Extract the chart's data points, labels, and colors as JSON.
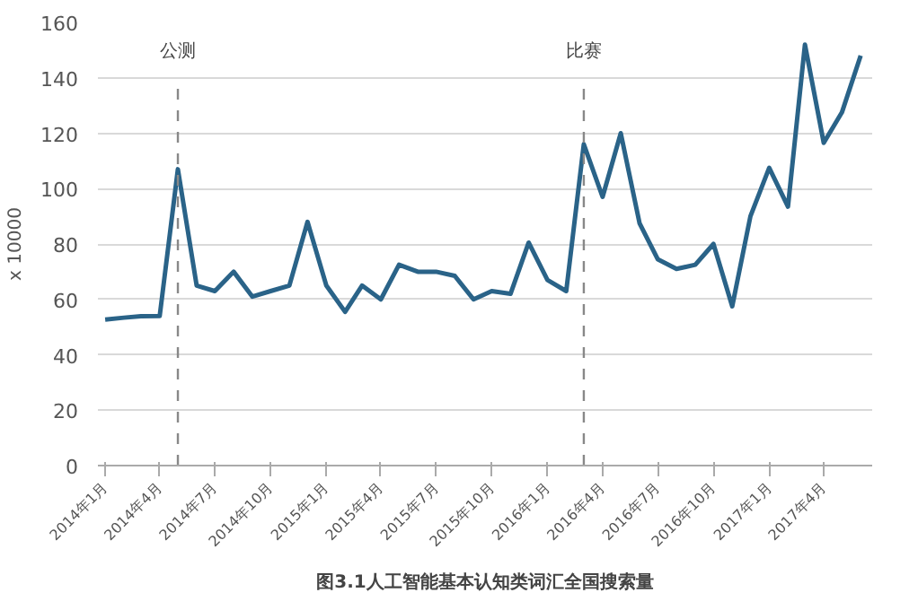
{
  "chart_data": {
    "type": "line",
    "title": "图3.1人工智能基本认知类词汇全国搜索量",
    "ylabel": "x 10000",
    "x": [
      "2014-01",
      "2014-02",
      "2014-03",
      "2014-04",
      "2014-05",
      "2014-06",
      "2014-07",
      "2014-08",
      "2014-09",
      "2014-10",
      "2014-11",
      "2014-12",
      "2015-01",
      "2015-02",
      "2015-03",
      "2015-04",
      "2015-05",
      "2015-06",
      "2015-07",
      "2015-08",
      "2015-09",
      "2015-10",
      "2015-11",
      "2015-12",
      "2016-01",
      "2016-02",
      "2016-03",
      "2016-04",
      "2016-05",
      "2016-06",
      "2016-07",
      "2016-08",
      "2016-09",
      "2016-10",
      "2016-11",
      "2016-12",
      "2017-01",
      "2017-02",
      "2017-03",
      "2017-04",
      "2017-05",
      "2017-06"
    ],
    "series": [
      {
        "color": "#2a6388",
        "values": [
          52.7,
          53.4,
          53.9,
          54,
          107,
          65,
          63,
          70,
          61,
          63,
          65,
          88,
          65,
          55.5,
          65,
          60,
          72.5,
          70,
          70,
          68.5,
          60,
          63,
          62,
          80.5,
          67,
          63,
          116,
          97,
          120,
          87.5,
          74.5,
          71,
          72.5,
          80,
          57.5,
          90,
          107.5,
          93.5,
          152,
          116.5,
          127.5,
          148
        ]
      }
    ],
    "xlim": [
      "2013-12-20",
      "2017-06-20"
    ],
    "xticks": [
      {
        "value": "2014-01",
        "label": "2014年1月"
      },
      {
        "value": "2014-04",
        "label": "2014年4月"
      },
      {
        "value": "2014-07",
        "label": "2014年7月"
      },
      {
        "value": "2014-10",
        "label": "2014年10月"
      },
      {
        "value": "2015-01",
        "label": "2015年1月"
      },
      {
        "value": "2015-04",
        "label": "2015年4月"
      },
      {
        "value": "2015-07",
        "label": "2015年7月"
      },
      {
        "value": "2015-10",
        "label": "2015年10月"
      },
      {
        "value": "2016-01",
        "label": "2016年1月"
      },
      {
        "value": "2016-04",
        "label": "2016年4月"
      },
      {
        "value": "2016-07",
        "label": "2016年7月"
      },
      {
        "value": "2016-10",
        "label": "2016年10月"
      },
      {
        "value": "2017-01",
        "label": "2017年1月"
      },
      {
        "value": "2017-04",
        "label": "2017年4月"
      }
    ],
    "ylim": [
      0,
      160
    ],
    "yticks": [
      0,
      20,
      40,
      60,
      80,
      100,
      120,
      140,
      160
    ],
    "ref_lines": [
      {
        "axis": "x",
        "value": "2014-05",
        "label": "公测",
        "color": "#888888",
        "line_style": "dashed"
      },
      {
        "axis": "x",
        "value": "2016-03",
        "label": "比赛",
        "color": "#888888",
        "line_style": "dashed"
      }
    ],
    "grid": "y",
    "marker": "none",
    "line_style": "solid"
  }
}
